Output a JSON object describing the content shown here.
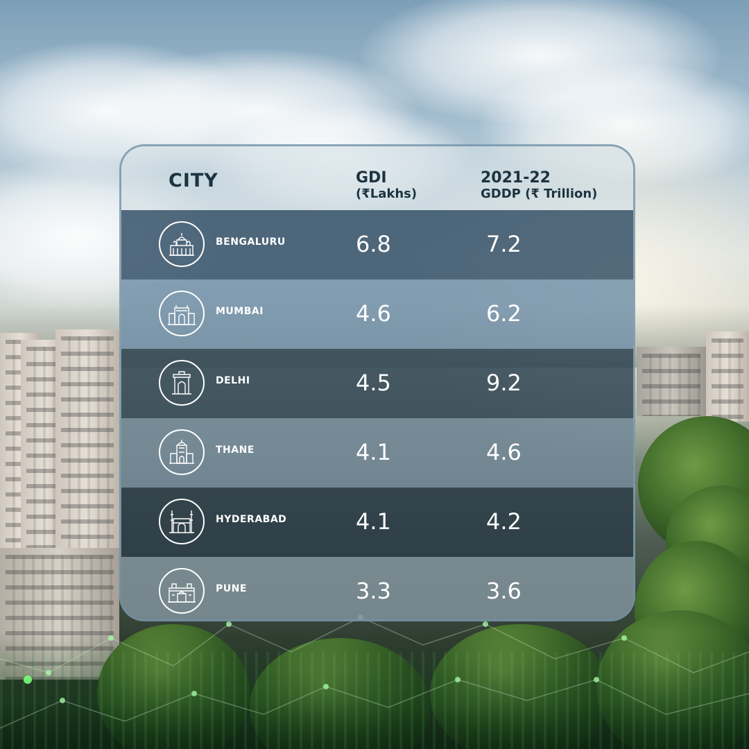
{
  "header": {
    "city_label": "CITY",
    "gdi_label": "GDI",
    "gdi_unit": "(₹Lakhs)",
    "gddp_year": "2021-22",
    "gddp_label": "GDDP (₹ Trillion)"
  },
  "rows": [
    {
      "city": "BENGALURU",
      "gdi": "6.8",
      "gddp": "7.2",
      "icon": "bengaluru-palace-icon",
      "bg": "#2f4c63"
    },
    {
      "city": "MUMBAI",
      "gdi": "4.6",
      "gddp": "6.2",
      "icon": "gateway-of-india-icon",
      "bg": "#6f8ea6"
    },
    {
      "city": "DELHI",
      "gdi": "4.5",
      "gddp": "9.2",
      "icon": "india-gate-icon",
      "bg": "#2a3f4d"
    },
    {
      "city": "THANE",
      "gdi": "4.1",
      "gddp": "4.6",
      "icon": "thane-monument-icon",
      "bg": "#6c8494"
    },
    {
      "city": "HYDERABAD",
      "gdi": "4.1",
      "gddp": "4.2",
      "icon": "charminar-icon",
      "bg": "#23353f"
    },
    {
      "city": "PUNE",
      "gdi": "3.3",
      "gddp": "3.6",
      "icon": "shaniwar-wada-icon",
      "bg": "#7d8f98"
    }
  ]
}
